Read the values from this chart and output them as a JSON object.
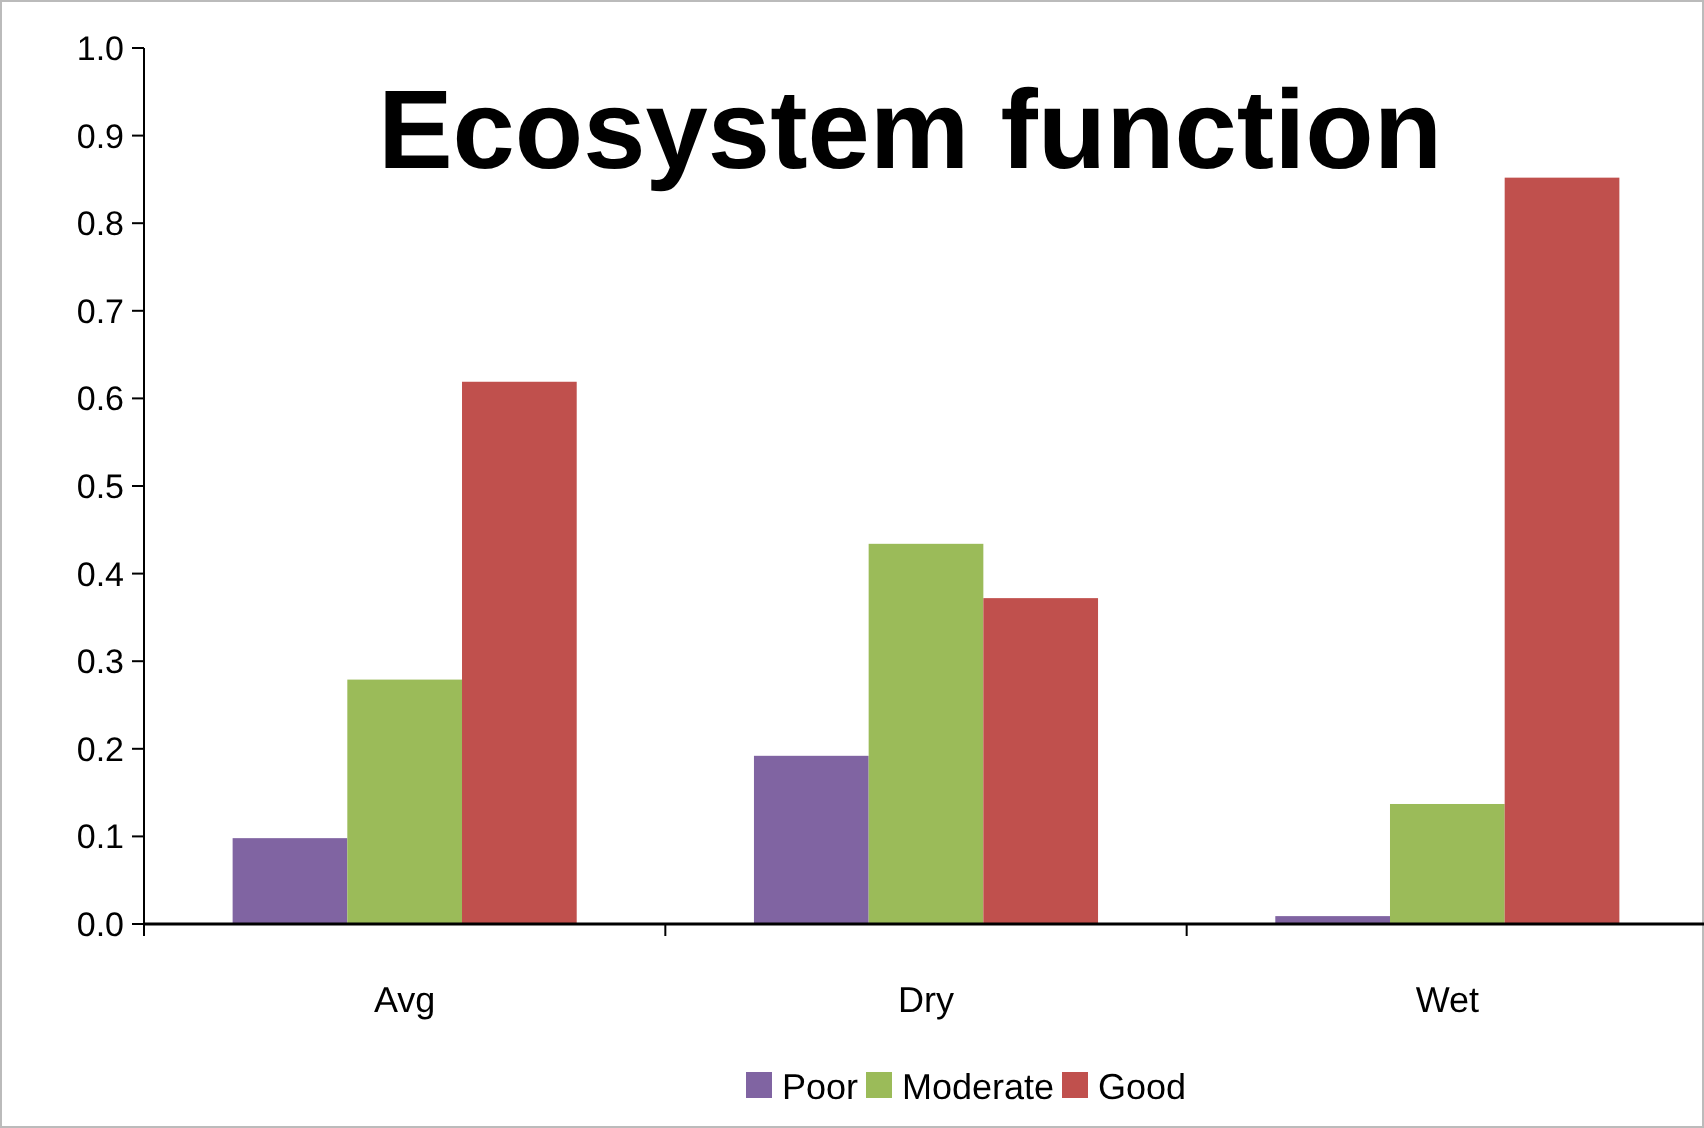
{
  "chart_data": {
    "type": "bar",
    "title": "Ecosystem function",
    "categories": [
      "Avg",
      "Dry",
      "Wet"
    ],
    "series": [
      {
        "name": "Poor",
        "color": "#8064a2",
        "values": [
          0.098,
          0.192,
          0.009
        ]
      },
      {
        "name": "Moderate",
        "color": "#9bbb59",
        "values": [
          0.279,
          0.434,
          0.137
        ]
      },
      {
        "name": "Good",
        "color": "#c0504d",
        "values": [
          0.619,
          0.372,
          0.852
        ]
      }
    ],
    "ylim": [
      0,
      1
    ],
    "yticks": [
      {
        "value": 0,
        "label": "0.0"
      },
      {
        "value": 0.1,
        "label": "0.1"
      },
      {
        "value": 0.2,
        "label": "0.2"
      },
      {
        "value": 0.3,
        "label": "0.3"
      },
      {
        "value": 0.4,
        "label": "0.4"
      },
      {
        "value": 0.5,
        "label": "0.5"
      },
      {
        "value": 0.6,
        "label": "0.6"
      },
      {
        "value": 0.7,
        "label": "0.7"
      },
      {
        "value": 0.8,
        "label": "0.8"
      },
      {
        "value": 0.9,
        "label": "0.9"
      },
      {
        "value": 1,
        "label": "1.0"
      }
    ],
    "grid": false,
    "legend": "bottom"
  }
}
